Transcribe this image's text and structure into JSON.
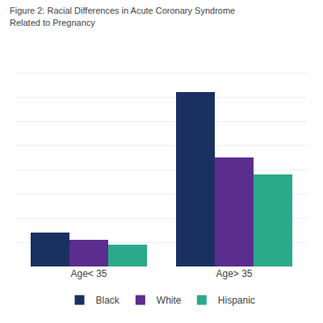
{
  "chart_data": {
    "type": "bar",
    "title": "Figure 2: Racial Differences in Acute Coronary Syndrome",
    "subtitle": "Related to Pregnancy",
    "categories": [
      "Age< 35",
      "Age> 35"
    ],
    "series": [
      {
        "name": "Black",
        "color": "#1a3060",
        "values": [
          14,
          72
        ]
      },
      {
        "name": "White",
        "color": "#5b2d8e",
        "values": [
          11,
          45
        ]
      },
      {
        "name": "Hispanic",
        "color": "#2aaa8a",
        "values": [
          9,
          38
        ]
      }
    ],
    "ylim": [
      0,
      90
    ],
    "yticks": [
      0,
      10,
      20,
      30,
      40,
      50,
      60,
      70,
      80,
      90
    ],
    "grid": true,
    "legend": "bottom",
    "tick_labels": "x"
  }
}
